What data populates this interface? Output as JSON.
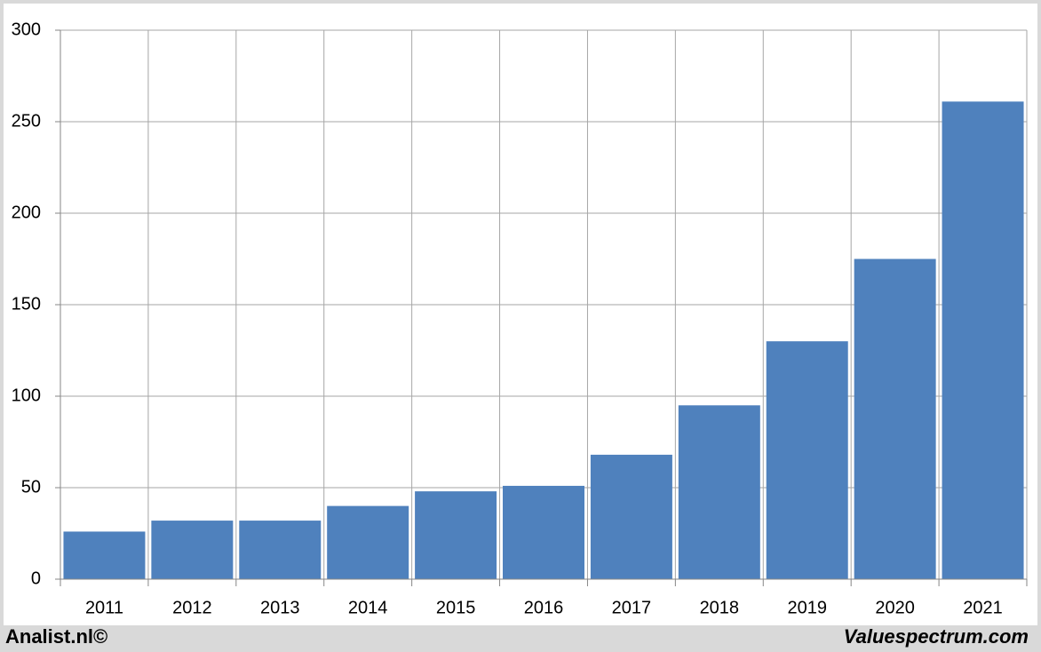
{
  "chart_data": {
    "type": "bar",
    "categories": [
      "2011",
      "2012",
      "2013",
      "2014",
      "2015",
      "2016",
      "2017",
      "2018",
      "2019",
      "2020",
      "2021"
    ],
    "values": [
      26,
      32,
      32,
      40,
      48,
      51,
      68,
      95,
      130,
      175,
      261
    ],
    "color": "#4f81bd",
    "ylim": [
      0,
      300
    ],
    "yticks": [
      0,
      50,
      100,
      150,
      200,
      250,
      300
    ],
    "grid": true
  },
  "footer": {
    "left": "Analist.nl©",
    "right": "Valuespectrum.com"
  }
}
